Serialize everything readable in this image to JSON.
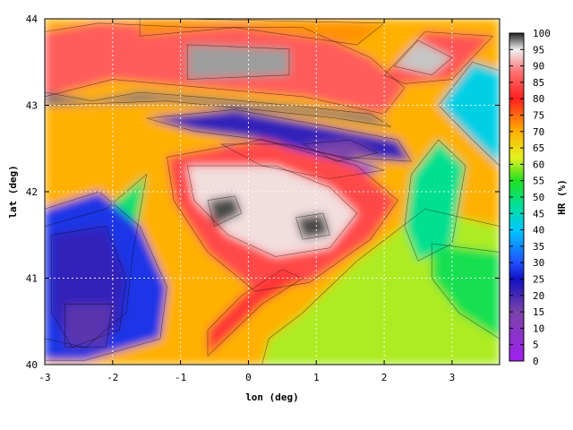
{
  "chart_data": {
    "type": "heatmap",
    "title": "",
    "xlabel": "lon (deg)",
    "ylabel": "lat (deg)",
    "xlim": [
      -3,
      3.7
    ],
    "ylim": [
      40,
      44
    ],
    "x_ticks": [
      -3,
      -2,
      -1,
      0,
      1,
      2,
      3
    ],
    "y_ticks": [
      40,
      41,
      42,
      43,
      44
    ],
    "grid": true,
    "colorbar": {
      "label": "HR (%)",
      "min": 0,
      "max": 100,
      "ticks": [
        0,
        5,
        10,
        15,
        20,
        25,
        30,
        35,
        40,
        45,
        50,
        55,
        60,
        65,
        70,
        75,
        80,
        85,
        90,
        95,
        100
      ],
      "colormap_stops": [
        {
          "value": 0,
          "color": "#a020f0"
        },
        {
          "value": 15,
          "color": "#7a44a8"
        },
        {
          "value": 25,
          "color": "#1010c0"
        },
        {
          "value": 30,
          "color": "#2050ff"
        },
        {
          "value": 40,
          "color": "#00c8ff"
        },
        {
          "value": 47,
          "color": "#00e0a0"
        },
        {
          "value": 55,
          "color": "#20e020"
        },
        {
          "value": 62,
          "color": "#e6f020"
        },
        {
          "value": 70,
          "color": "#ffb000"
        },
        {
          "value": 80,
          "color": "#ff2020"
        },
        {
          "value": 88,
          "color": "#ff7070"
        },
        {
          "value": 95,
          "color": "#f0f0f0"
        },
        {
          "value": 100,
          "color": "#202020"
        }
      ]
    },
    "regions": [
      {
        "value": 70,
        "points": [
          [
            -3,
            40
          ],
          [
            3.7,
            40
          ],
          [
            3.7,
            44
          ],
          [
            -3,
            44
          ]
        ]
      },
      {
        "value": 60,
        "points": [
          [
            0.2,
            40
          ],
          [
            3.7,
            40
          ],
          [
            3.7,
            41.6
          ],
          [
            2.6,
            41.8
          ],
          [
            1.6,
            41.2
          ],
          [
            0.8,
            40.6
          ],
          [
            0.3,
            40.3
          ]
        ]
      },
      {
        "value": 52,
        "points": [
          [
            2.7,
            41.4
          ],
          [
            3.7,
            41.3
          ],
          [
            3.7,
            40.3
          ],
          [
            3.1,
            40.6
          ],
          [
            2.7,
            41.0
          ]
        ]
      },
      {
        "value": 48,
        "points": [
          [
            2.4,
            42.2
          ],
          [
            2.8,
            42.6
          ],
          [
            3.2,
            42.3
          ],
          [
            3.0,
            41.4
          ],
          [
            2.5,
            41.2
          ],
          [
            2.3,
            41.6
          ]
        ]
      },
      {
        "value": 42,
        "points": [
          [
            2.8,
            43.0
          ],
          [
            3.3,
            43.5
          ],
          [
            3.7,
            43.4
          ],
          [
            3.7,
            42.3
          ],
          [
            3.3,
            42.6
          ]
        ]
      },
      {
        "value": 86,
        "points": [
          [
            -3,
            43.1
          ],
          [
            -2.0,
            43.3
          ],
          [
            -0.6,
            43.2
          ],
          [
            0.8,
            43.1
          ],
          [
            2.0,
            42.9
          ],
          [
            2.3,
            43.2
          ],
          [
            1.8,
            43.55
          ],
          [
            0.8,
            43.9
          ],
          [
            -0.8,
            43.9
          ],
          [
            -2.2,
            43.95
          ],
          [
            -3,
            43.85
          ]
        ]
      },
      {
        "value": 72,
        "points": [
          [
            -1.6,
            43.8
          ],
          [
            -0.2,
            43.9
          ],
          [
            1.6,
            43.7
          ],
          [
            2.0,
            43.95
          ],
          [
            -1.0,
            44
          ],
          [
            -1.6,
            44
          ]
        ]
      },
      {
        "value": 85,
        "points": [
          [
            2.0,
            43.35
          ],
          [
            2.6,
            43.85
          ],
          [
            3.6,
            43.8
          ],
          [
            3.0,
            43.3
          ],
          [
            2.3,
            43.25
          ]
        ]
      },
      {
        "value": 96,
        "points": [
          [
            2.15,
            43.45
          ],
          [
            2.5,
            43.75
          ],
          [
            3.0,
            43.55
          ],
          [
            2.7,
            43.35
          ]
        ]
      },
      {
        "value": 97,
        "points": [
          [
            -0.9,
            43.7
          ],
          [
            0.6,
            43.65
          ],
          [
            0.6,
            43.35
          ],
          [
            -0.9,
            43.3
          ]
        ]
      },
      {
        "value": 98,
        "points": [
          [
            -3,
            43.15
          ],
          [
            -2.3,
            43.05
          ],
          [
            -1.6,
            43.15
          ],
          [
            -0.8,
            43.1
          ],
          [
            0.6,
            43.0
          ],
          [
            1.8,
            42.9
          ],
          [
            2.1,
            42.75
          ],
          [
            1.3,
            42.85
          ],
          [
            0.1,
            42.95
          ],
          [
            -1.2,
            43.05
          ],
          [
            -3,
            43.0
          ]
        ]
      },
      {
        "value": 22,
        "points": [
          [
            -1.5,
            42.85
          ],
          [
            -0.2,
            42.95
          ],
          [
            1.2,
            42.75
          ],
          [
            2.2,
            42.6
          ],
          [
            2.4,
            42.35
          ],
          [
            1.4,
            42.4
          ],
          [
            0.2,
            42.6
          ],
          [
            -0.8,
            42.7
          ]
        ]
      },
      {
        "value": 28,
        "points": [
          [
            -0.4,
            42.55
          ],
          [
            0.6,
            42.55
          ],
          [
            1.6,
            42.35
          ],
          [
            2.0,
            42.25
          ],
          [
            1.2,
            42.15
          ],
          [
            0.2,
            42.3
          ]
        ]
      },
      {
        "value": 15,
        "points": [
          [
            0.8,
            42.55
          ],
          [
            1.5,
            42.6
          ],
          [
            1.9,
            42.45
          ],
          [
            1.3,
            42.35
          ]
        ]
      },
      {
        "value": 50,
        "points": [
          [
            -3,
            41.6
          ],
          [
            -2.1,
            41.8
          ],
          [
            -1.5,
            42.2
          ],
          [
            -1.7,
            41.3
          ],
          [
            -1.8,
            40.6
          ],
          [
            -2.4,
            40.2
          ],
          [
            -3,
            40.3
          ]
        ]
      },
      {
        "value": 28,
        "points": [
          [
            -3,
            41.8
          ],
          [
            -2.2,
            42.0
          ],
          [
            -1.6,
            41.6
          ],
          [
            -1.2,
            40.9
          ],
          [
            -1.3,
            40.3
          ],
          [
            -2.4,
            40.05
          ],
          [
            -3,
            40.05
          ]
        ]
      },
      {
        "value": 22,
        "points": [
          [
            -2.9,
            41.5
          ],
          [
            -2.1,
            41.6
          ],
          [
            -1.8,
            41.0
          ],
          [
            -1.9,
            40.4
          ],
          [
            -2.6,
            40.2
          ],
          [
            -2.9,
            40.6
          ]
        ]
      },
      {
        "value": 18,
        "points": [
          [
            -2.7,
            40.7
          ],
          [
            -2.0,
            40.7
          ],
          [
            -2.1,
            40.2
          ],
          [
            -2.7,
            40.2
          ]
        ]
      },
      {
        "value": 84,
        "points": [
          [
            -1.2,
            42.4
          ],
          [
            0.2,
            42.6
          ],
          [
            1.6,
            42.3
          ],
          [
            2.2,
            41.9
          ],
          [
            1.8,
            41.45
          ],
          [
            0.9,
            40.95
          ],
          [
            0.1,
            40.85
          ],
          [
            -0.6,
            41.3
          ],
          [
            -1.1,
            41.9
          ]
        ]
      },
      {
        "value": 94,
        "points": [
          [
            -0.9,
            42.3
          ],
          [
            0.4,
            42.3
          ],
          [
            1.2,
            42.05
          ],
          [
            1.6,
            41.75
          ],
          [
            1.2,
            41.35
          ],
          [
            0.4,
            41.25
          ],
          [
            -0.3,
            41.5
          ],
          [
            -0.8,
            41.9
          ]
        ]
      },
      {
        "value": 99,
        "points": [
          [
            -0.6,
            41.9
          ],
          [
            -0.2,
            41.95
          ],
          [
            -0.1,
            41.75
          ],
          [
            -0.5,
            41.6
          ]
        ]
      },
      {
        "value": 99,
        "points": [
          [
            0.7,
            41.7
          ],
          [
            1.1,
            41.75
          ],
          [
            1.2,
            41.5
          ],
          [
            0.8,
            41.45
          ]
        ]
      },
      {
        "value": 82,
        "points": [
          [
            -0.6,
            40.1
          ],
          [
            0.2,
            40.7
          ],
          [
            0.8,
            41.0
          ],
          [
            0.5,
            41.1
          ],
          [
            -0.1,
            40.8
          ],
          [
            -0.6,
            40.4
          ]
        ]
      }
    ]
  }
}
